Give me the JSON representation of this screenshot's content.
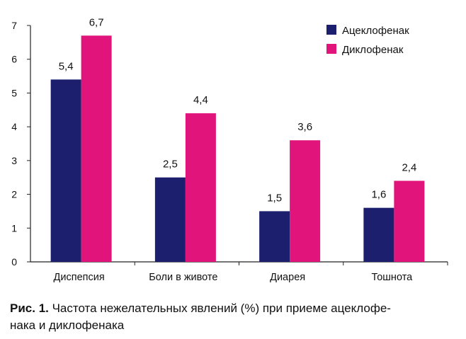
{
  "chart_data": {
    "type": "bar",
    "categories": [
      "Диспепсия",
      "Боли в животе",
      "Диарея",
      "Тошнота"
    ],
    "series": [
      {
        "name": "Ацеклофенак",
        "color": "#1b1f6e",
        "values": [
          5.4,
          2.5,
          1.5,
          1.6
        ],
        "labels": [
          "5,4",
          "2,5",
          "1,5",
          "1,6"
        ]
      },
      {
        "name": "Диклофенак",
        "color": "#e0147a",
        "values": [
          6.7,
          4.4,
          3.6,
          2.4
        ],
        "labels": [
          "6,7",
          "4,4",
          "3,6",
          "2,4"
        ]
      }
    ],
    "ylim": [
      0,
      7
    ],
    "yticks": [
      "0",
      "1",
      "2",
      "3",
      "4",
      "5",
      "6",
      "7"
    ],
    "legend": "top-right",
    "grid": false
  },
  "caption": {
    "lead": "Рис. 1.",
    "text": " Частота нежелательных явлений (%) при приеме ацеклофе-\nнака и диклофенака"
  }
}
